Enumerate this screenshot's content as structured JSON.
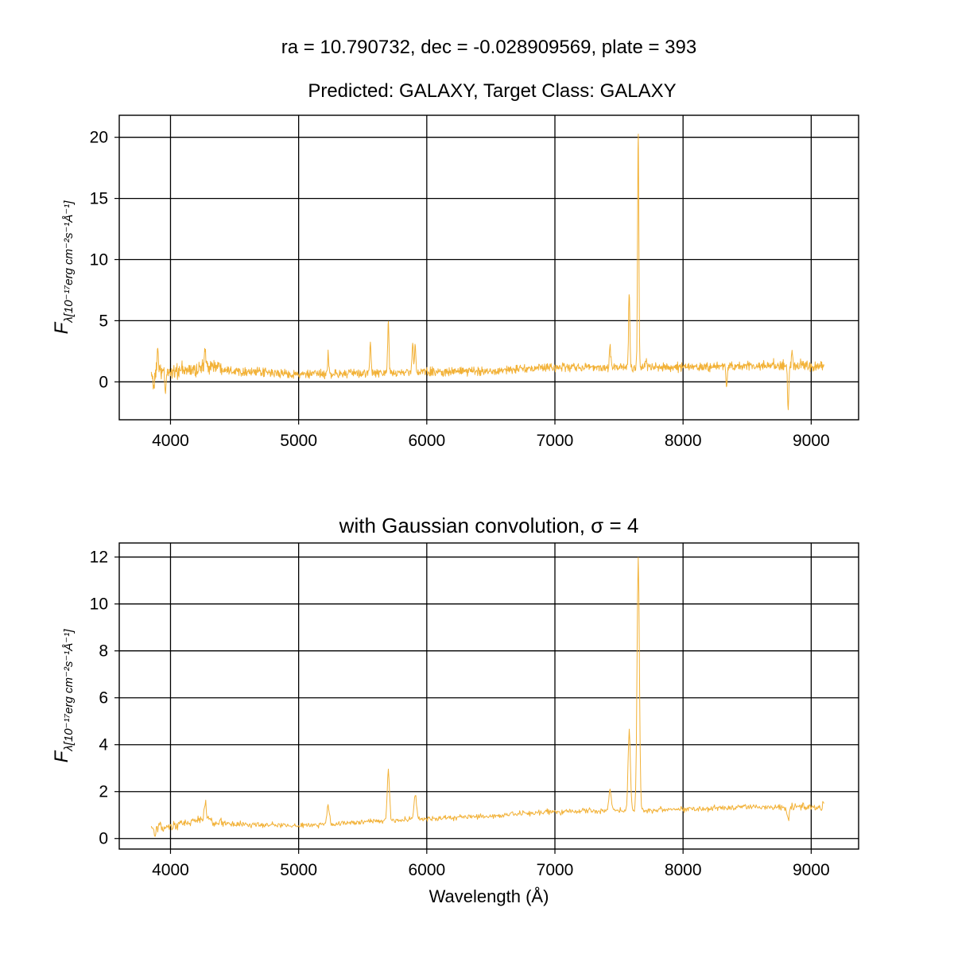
{
  "figure": {
    "suptitle": "ra = 10.790732, dec = -0.028909569, plate = 393",
    "line_color": "#F2B136",
    "grid": true
  },
  "chart_data": [
    {
      "type": "line",
      "title": "Predicted: GALAXY, Target Class: GALAXY",
      "ylabel": "F",
      "ylabel_sub": "λ[10⁻¹⁷erg cm⁻²s⁻¹Å⁻¹]",
      "xlabel": "",
      "xlim": [
        3600,
        9370
      ],
      "ylim": [
        -3.1,
        21.8
      ],
      "xticks": [
        4000,
        5000,
        6000,
        7000,
        8000,
        9000
      ],
      "yticks": [
        0,
        5,
        10,
        15,
        20
      ],
      "series": [
        {
          "x_range": [
            3850,
            9100
          ],
          "noise_amplitude": 0.35,
          "continuum": [
            [
              3850,
              0.7
            ],
            [
              4200,
              1.0
            ],
            [
              4300,
              1.4
            ],
            [
              4500,
              0.9
            ],
            [
              5000,
              0.6
            ],
            [
              5500,
              0.7
            ],
            [
              6000,
              0.8
            ],
            [
              6500,
              0.9
            ],
            [
              7000,
              1.2
            ],
            [
              7500,
              1.2
            ],
            [
              8000,
              1.2
            ],
            [
              8500,
              1.3
            ],
            [
              9100,
              1.3
            ]
          ],
          "features": [
            {
              "x": 3870,
              "y": -0.9
            },
            {
              "x": 3900,
              "y": 2.9
            },
            {
              "x": 3960,
              "y": -0.8
            },
            {
              "x": 4270,
              "y": 2.5
            },
            {
              "x": 5230,
              "y": 2.2
            },
            {
              "x": 5560,
              "y": 3.1
            },
            {
              "x": 5700,
              "y": 4.8
            },
            {
              "x": 5890,
              "y": 3.1
            },
            {
              "x": 5910,
              "y": 3.0
            },
            {
              "x": 7430,
              "y": 3.1
            },
            {
              "x": 7580,
              "y": 7.3
            },
            {
              "x": 7650,
              "y": 20.6
            },
            {
              "x": 7710,
              "y": 1.8
            },
            {
              "x": 8340,
              "y": -0.5
            },
            {
              "x": 8820,
              "y": -2.1
            },
            {
              "x": 8850,
              "y": 2.3
            }
          ]
        }
      ]
    },
    {
      "type": "line",
      "title": "with Gaussian convolution, σ = 4",
      "ylabel": "F",
      "ylabel_sub": "λ[10⁻¹⁷erg cm⁻²s⁻¹Å⁻¹]",
      "xlabel": "Wavelength (Å)",
      "xlim": [
        3600,
        9370
      ],
      "ylim": [
        -0.45,
        12.6
      ],
      "xticks": [
        4000,
        5000,
        6000,
        7000,
        8000,
        9000
      ],
      "yticks": [
        0,
        2,
        4,
        6,
        8,
        10,
        12
      ],
      "series": [
        {
          "x_range": [
            3850,
            9100
          ],
          "noise_amplitude": 0.12,
          "continuum": [
            [
              3850,
              0.45
            ],
            [
              4000,
              0.45
            ],
            [
              4200,
              0.8
            ],
            [
              4500,
              0.6
            ],
            [
              5000,
              0.55
            ],
            [
              5500,
              0.7
            ],
            [
              6000,
              0.85
            ],
            [
              6500,
              0.95
            ],
            [
              7000,
              1.15
            ],
            [
              7500,
              1.2
            ],
            [
              8000,
              1.25
            ],
            [
              8500,
              1.35
            ],
            [
              9100,
              1.35
            ]
          ],
          "features": [
            {
              "x": 3880,
              "y": 0.15
            },
            {
              "x": 4270,
              "y": 1.5
            },
            {
              "x": 5230,
              "y": 1.4
            },
            {
              "x": 5700,
              "y": 2.9
            },
            {
              "x": 5910,
              "y": 1.9
            },
            {
              "x": 7430,
              "y": 2.1
            },
            {
              "x": 7580,
              "y": 4.6
            },
            {
              "x": 7650,
              "y": 12.0
            },
            {
              "x": 8820,
              "y": 0.8
            },
            {
              "x": 9100,
              "y": 1.5
            }
          ]
        }
      ]
    }
  ]
}
